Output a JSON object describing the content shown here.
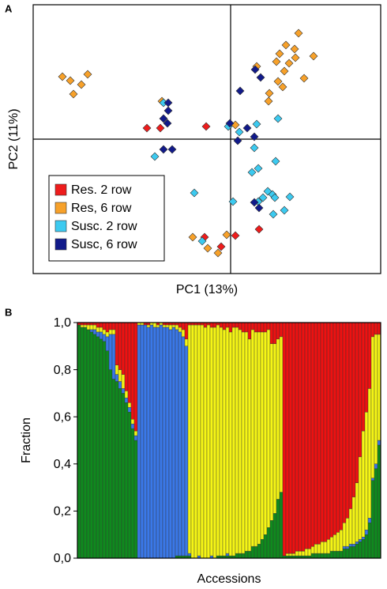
{
  "chart_data": [
    {
      "type": "scatter",
      "panel_label": "A",
      "x_label": "PC1 (13%)",
      "y_label": "PC2 (11%)",
      "xlim": [
        -25,
        19
      ],
      "ylim": [
        -17,
        17
      ],
      "legend": "lower left",
      "series": [
        {
          "name": "Res. 2 row",
          "color": "#ee1c1c",
          "x": [
            -10.6,
            -8.9,
            -3.1,
            -3.3,
            -1.2,
            0.6,
            3.6
          ],
          "values": [
            1.4,
            1.4,
            1.6,
            -12.4,
            -13.6,
            -12.2,
            -11.4
          ]
        },
        {
          "name": "Res, 6 row",
          "color": "#f7a12a",
          "x": [
            -21.3,
            -20.3,
            -18.1,
            -18.9,
            -19.9,
            -8.7,
            -4.8,
            -2.9,
            -1.6,
            -0.5,
            3.3,
            8.6,
            7,
            8.1,
            6.2,
            8.2,
            10.5,
            5.8,
            7.4,
            6.8,
            9.3,
            6,
            6.6,
            4.9,
            4.8,
            0.6
          ],
          "values": [
            7.9,
            7.4,
            8.2,
            6.9,
            5.7,
            4.8,
            -12.4,
            -13.8,
            -14.4,
            -12.1,
            9.2,
            13.4,
            11.9,
            11.4,
            10.8,
            10.3,
            10.5,
            9.8,
            9.6,
            8.6,
            7.7,
            7.3,
            6.6,
            5.8,
            4.8,
            1.8
          ]
        },
        {
          "name": "Susc. 2 row",
          "color": "#3ccaf0",
          "x": [
            -9.6,
            -4.6,
            0.3,
            -0.3,
            1.1,
            6,
            3.3,
            3,
            3.5,
            2.7,
            5.7,
            4.7,
            5.3,
            4.1,
            5.6,
            7.5,
            3.5,
            6.8,
            5.4,
            -3.6,
            -8.5
          ],
          "values": [
            -2.2,
            -6.8,
            -7.9,
            1.6,
            0.9,
            2.6,
            1.9,
            -1.1,
            -3.7,
            -4.2,
            -2.8,
            -6.6,
            -7,
            -7.4,
            -7.4,
            -7.3,
            -7.9,
            -9,
            -9.5,
            -12.9,
            4.6
          ]
        },
        {
          "name": "Susc, 6 row",
          "color": "#111a8a",
          "x": [
            -7.9,
            -7.9,
            -8.5,
            -8,
            -8.5,
            -7.4,
            3.1,
            3.8,
            1.2,
            -0.1,
            2.1,
            3,
            0.9,
            3,
            3.6
          ],
          "values": [
            4.6,
            3.6,
            2.6,
            2,
            -1.3,
            -1.3,
            8.8,
            7.8,
            6.1,
            2,
            1.4,
            0.3,
            -0.2,
            -8,
            -8.7
          ]
        }
      ]
    },
    {
      "type": "stacked_bar",
      "panel_label": "B",
      "x_label": "Accessions",
      "y_label": "Fraction",
      "ylim": [
        0,
        1
      ],
      "yticks": [
        {
          "value": 0,
          "label": "0,0"
        },
        {
          "value": 0.2,
          "label": "0,2"
        },
        {
          "value": 0.4,
          "label": "0,4"
        },
        {
          "value": 0.6,
          "label": "0,6"
        },
        {
          "value": 0.8,
          "label": "0,8"
        },
        {
          "value": 1,
          "label": "1,0"
        }
      ],
      "categories": [
        null,
        null,
        null,
        null,
        null,
        null,
        null,
        null,
        null,
        null,
        null,
        null,
        null,
        null,
        null,
        null,
        null,
        null,
        null,
        null,
        null,
        null,
        null,
        null,
        null,
        null,
        null,
        null,
        null,
        null,
        null,
        null,
        null,
        null,
        null,
        null,
        null,
        null,
        null,
        null,
        null,
        null,
        null,
        null,
        null,
        null,
        null,
        null,
        null,
        null,
        null,
        null,
        null,
        null,
        null,
        null,
        null,
        null,
        null,
        null,
        null,
        null,
        null,
        null,
        null,
        null,
        null,
        null,
        null,
        null,
        null,
        null,
        null,
        null,
        null,
        null,
        null,
        null,
        null,
        null,
        null,
        null,
        null,
        null,
        null,
        null,
        null,
        null,
        null,
        null,
        null,
        null,
        null,
        null,
        null,
        null
      ],
      "series": [
        {
          "color": "#0f8a1e",
          "values": [
            0.99,
            0.98,
            0.98,
            0.97,
            0.96,
            0.95,
            0.94,
            0.93,
            0.92,
            0.88,
            0.8,
            0.76,
            0.75,
            0.72,
            0.7,
            0.66,
            0.62,
            0.55,
            0.5,
            0,
            0,
            0,
            0,
            0,
            0,
            0,
            0,
            0,
            0,
            0,
            0,
            0.01,
            0.01,
            0.01,
            0.01,
            0.01,
            0,
            0,
            0,
            0,
            0,
            0,
            0,
            0,
            0.01,
            0.01,
            0.01,
            0.01,
            0.01,
            0.01,
            0.02,
            0.02,
            0.02,
            0.03,
            0.03,
            0.05,
            0.05,
            0.06,
            0.08,
            0.1,
            0.13,
            0.16,
            0.19,
            0.25,
            0.28,
            0.01,
            0.01,
            0.01,
            0.01,
            0.01,
            0.01,
            0.01,
            0.01,
            0.01,
            0.02,
            0.02,
            0.02,
            0.02,
            0.02,
            0.02,
            0.03,
            0.03,
            0.03,
            0.03,
            0.04,
            0.04,
            0.05,
            0.05,
            0.06,
            0.07,
            0.08,
            0.1,
            0.15,
            0.33,
            0.38,
            0.48
          ]
        },
        {
          "color": "#3a78e8",
          "values": [
            0,
            0,
            0,
            0,
            0.01,
            0.02,
            0.02,
            0.03,
            0.03,
            0.06,
            0.15,
            0.19,
            0.03,
            0.03,
            0.02,
            0.02,
            0.02,
            0.02,
            0.02,
            0.99,
            0.99,
            0.99,
            0.98,
            0.99,
            0.98,
            0.98,
            0.99,
            0.98,
            0.98,
            0.97,
            0.98,
            0.96,
            0.95,
            0.93,
            0.89,
            0.01,
            0,
            0,
            0.01,
            0,
            0,
            0,
            0.01,
            0,
            0,
            0,
            0,
            0.01,
            0,
            0,
            0,
            0,
            0,
            0,
            0,
            0,
            0,
            0,
            0,
            0,
            0,
            0,
            0,
            0,
            0,
            0,
            0,
            0,
            0,
            0,
            0,
            0,
            0,
            0,
            0,
            0,
            0,
            0,
            0,
            0,
            0,
            0,
            0,
            0,
            0.01,
            0.01,
            0.01,
            0.01,
            0.01,
            0.01,
            0.01,
            0.02,
            0.02,
            0.01,
            0.02,
            0.02
          ]
        },
        {
          "color": "#f5f515",
          "values": [
            0,
            0.01,
            0.01,
            0.02,
            0.02,
            0.02,
            0.02,
            0.02,
            0.02,
            0.02,
            0.02,
            0.02,
            0.04,
            0.05,
            0.06,
            0.03,
            0.02,
            0.02,
            0.02,
            0.01,
            0.01,
            0,
            0.01,
            0.01,
            0.02,
            0.01,
            0.01,
            0.01,
            0.01,
            0.02,
            0.01,
            0.02,
            0.02,
            0.03,
            0.03,
            0.97,
            0.99,
            0.99,
            0.98,
            0.99,
            0.98,
            0.99,
            0.97,
            0.98,
            0.98,
            0.97,
            0.96,
            0.96,
            0.95,
            0.97,
            0.96,
            0.95,
            0.94,
            0.93,
            0.9,
            0.92,
            0.91,
            0.9,
            0.88,
            0.86,
            0.84,
            0.75,
            0.72,
            0.68,
            0.66,
            0,
            0.01,
            0.01,
            0.01,
            0.02,
            0.02,
            0.02,
            0.03,
            0.03,
            0.03,
            0.04,
            0.04,
            0.05,
            0.05,
            0.06,
            0.06,
            0.07,
            0.08,
            0.09,
            0.1,
            0.12,
            0.15,
            0.2,
            0.25,
            0.35,
            0.45,
            0.5,
            0.55,
            0.6,
            0.55,
            0.45
          ]
        },
        {
          "color": "#ee1111",
          "values": [
            0.01,
            0.01,
            0.01,
            0.01,
            0.01,
            0.01,
            0.02,
            0.02,
            0.03,
            0.04,
            0.03,
            0.03,
            0.18,
            0.2,
            0.22,
            0.29,
            0.34,
            0.41,
            0.46,
            0,
            0,
            0.01,
            0.01,
            0,
            0,
            0.01,
            0,
            0.01,
            0.01,
            0.01,
            0.01,
            0.01,
            0.02,
            0.03,
            0.07,
            0.01,
            0.01,
            0.01,
            0.01,
            0.01,
            0.02,
            0.01,
            0.02,
            0.02,
            0.01,
            0.02,
            0.03,
            0.02,
            0.04,
            0.02,
            0.02,
            0.03,
            0.04,
            0.04,
            0.07,
            0.03,
            0.04,
            0.04,
            0.04,
            0.04,
            0.03,
            0.09,
            0.09,
            0.07,
            0.06,
            0.99,
            0.98,
            0.98,
            0.98,
            0.97,
            0.97,
            0.97,
            0.96,
            0.96,
            0.95,
            0.94,
            0.94,
            0.93,
            0.93,
            0.92,
            0.91,
            0.9,
            0.89,
            0.88,
            0.85,
            0.83,
            0.79,
            0.74,
            0.68,
            0.57,
            0.46,
            0.38,
            0.28,
            0.06,
            0.05,
            0.05
          ]
        }
      ]
    }
  ]
}
